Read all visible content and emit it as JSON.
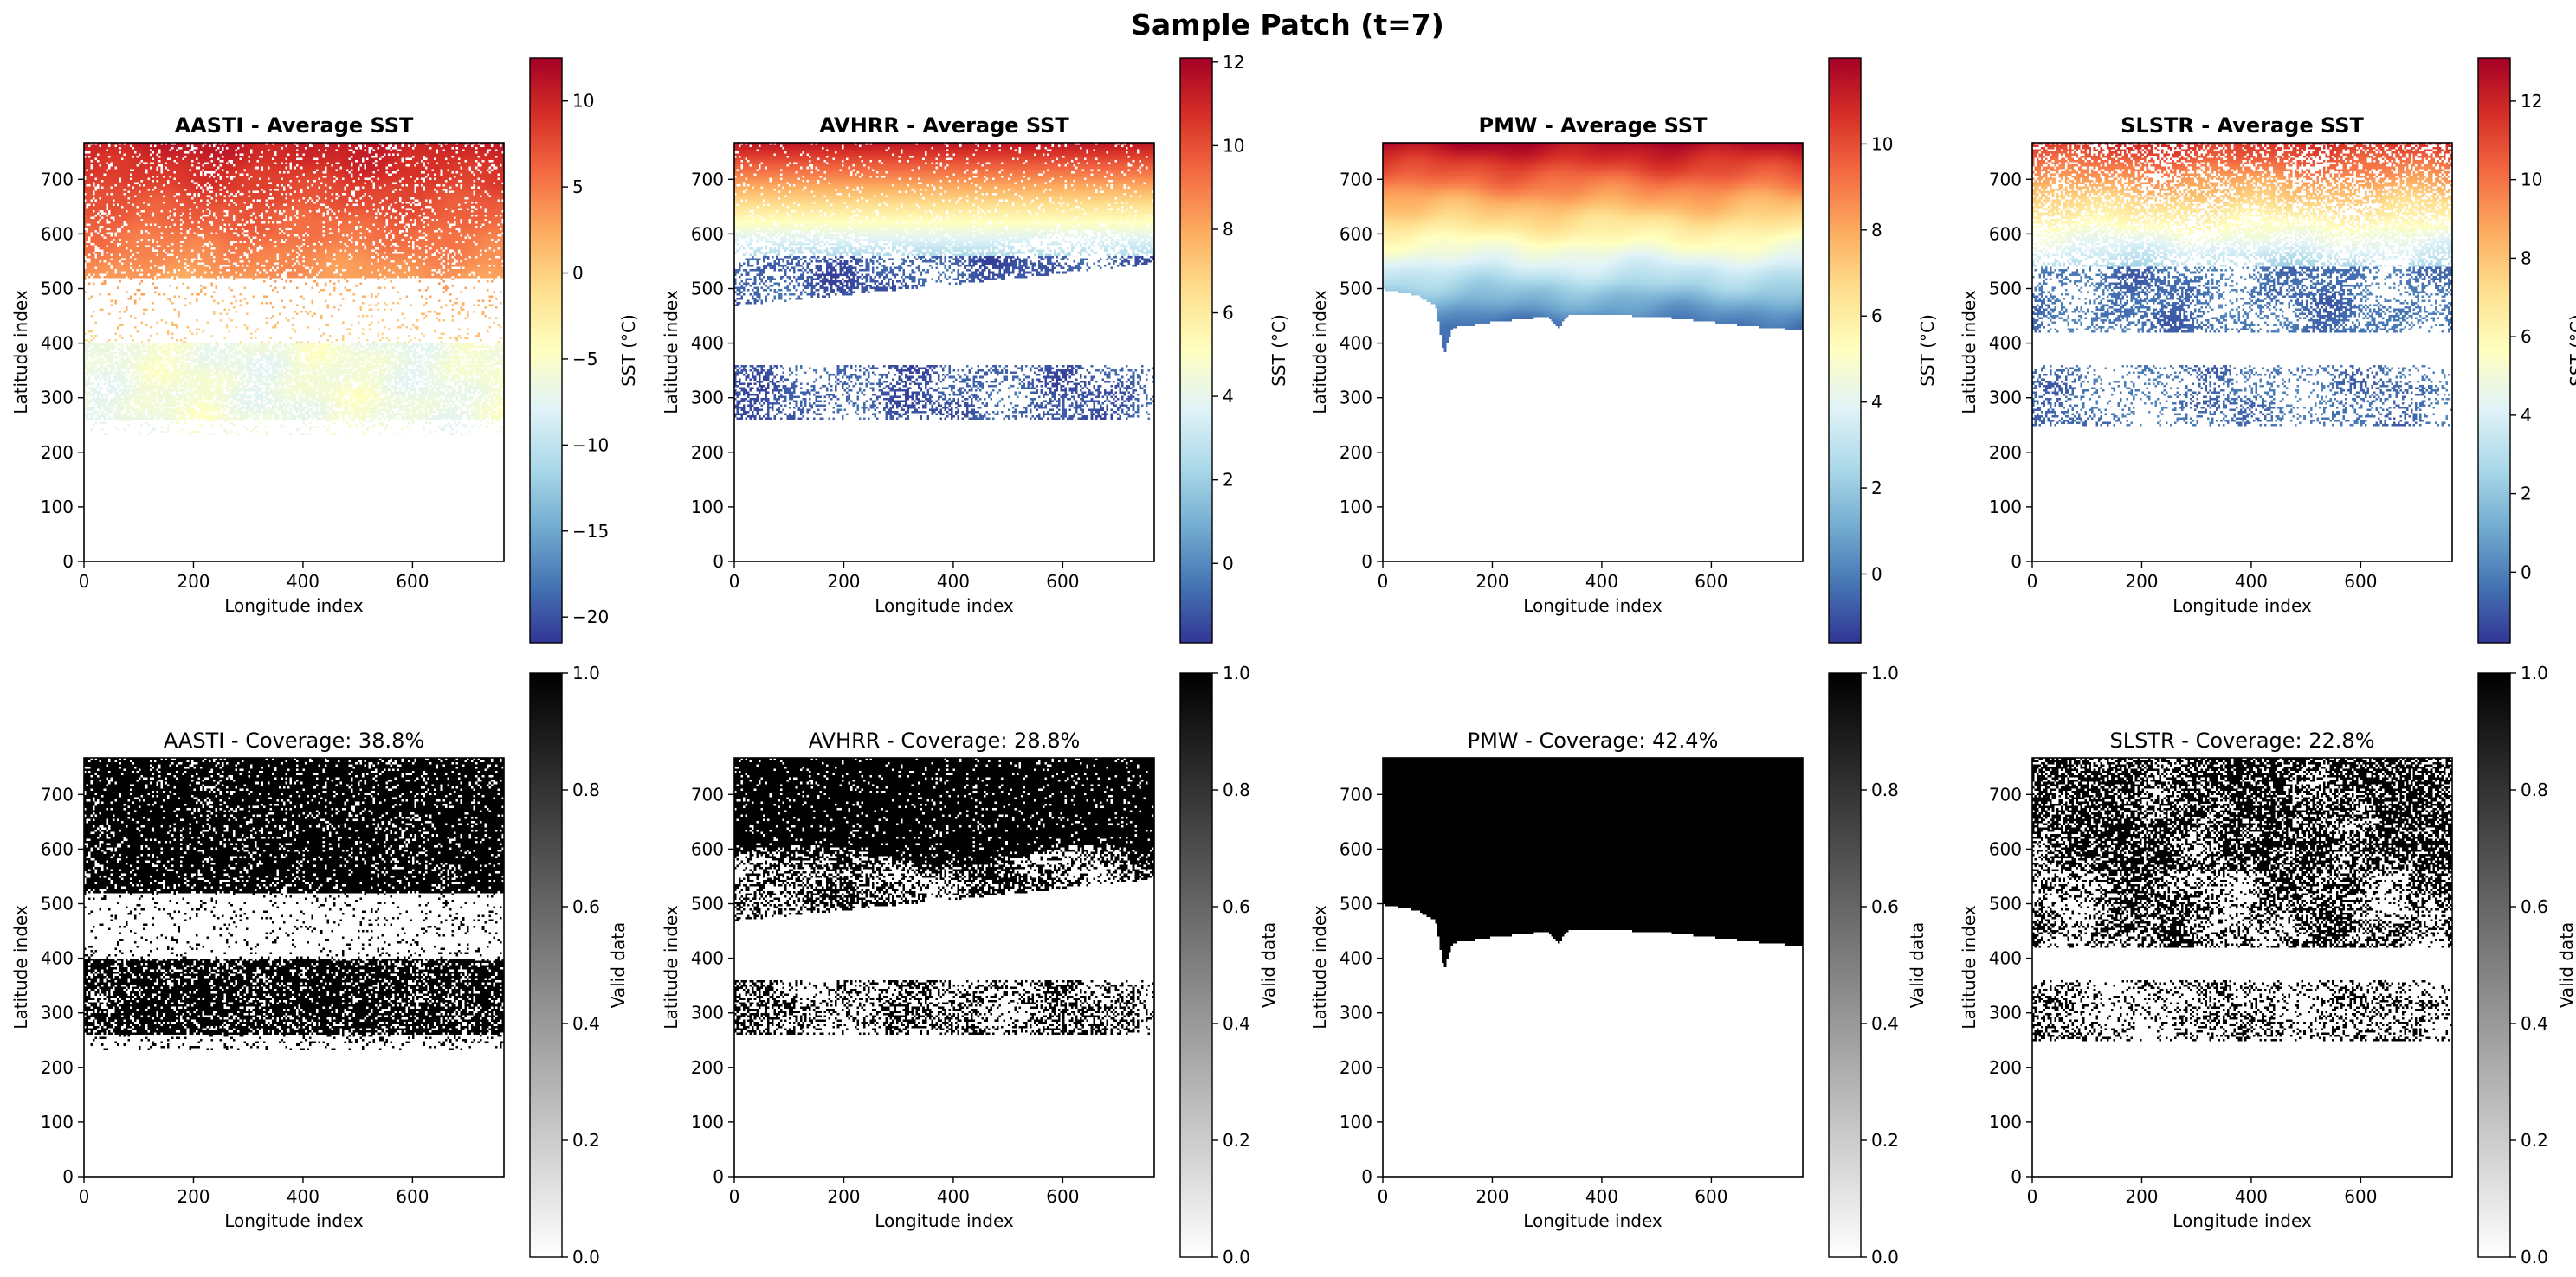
{
  "figure": {
    "suptitle": "Sample Patch (t=7)"
  },
  "colors": {
    "axis": "#000000",
    "background": "#ffffff",
    "rdylbu_r": [
      "#313695",
      "#4575b4",
      "#74add1",
      "#abd9e9",
      "#e0f3f8",
      "#ffffbf",
      "#fee090",
      "#fdae61",
      "#f46d43",
      "#d73027",
      "#a50026"
    ],
    "greys": [
      "#ffffff",
      "#000000"
    ]
  },
  "chart_data": [
    {
      "type": "heatmap",
      "panel": "top-1",
      "title": "AASTI - Average SST",
      "title_bold": true,
      "xlabel": "Longitude index",
      "ylabel": "Latitude index",
      "xticks": [
        0,
        200,
        400,
        600
      ],
      "yticks": [
        0,
        100,
        200,
        300,
        400,
        500,
        600,
        700
      ],
      "xlim": [
        0,
        767
      ],
      "ylim": [
        0,
        767
      ],
      "colorbar": {
        "label": "SST (°C)",
        "cmap": "RdYlBu_r",
        "range": [
          -21.5,
          12.5
        ],
        "ticks": [
          -20,
          -15,
          -10,
          -5,
          0,
          5,
          10
        ]
      }
    },
    {
      "type": "heatmap",
      "panel": "top-2",
      "title": "AVHRR - Average SST",
      "title_bold": true,
      "xlabel": "Longitude index",
      "ylabel": "Latitude index",
      "xticks": [
        0,
        200,
        400,
        600
      ],
      "yticks": [
        0,
        100,
        200,
        300,
        400,
        500,
        600,
        700
      ],
      "xlim": [
        0,
        767
      ],
      "ylim": [
        0,
        767
      ],
      "colorbar": {
        "label": "SST (°C)",
        "cmap": "RdYlBu_r",
        "range": [
          -1.9,
          12.1
        ],
        "ticks": [
          0,
          2,
          4,
          6,
          8,
          10,
          12
        ]
      }
    },
    {
      "type": "heatmap",
      "panel": "top-3",
      "title": "PMW - Average SST",
      "title_bold": true,
      "xlabel": "Longitude index",
      "ylabel": "Latitude index",
      "xticks": [
        0,
        200,
        400,
        600
      ],
      "yticks": [
        0,
        100,
        200,
        300,
        400,
        500,
        600,
        700
      ],
      "xlim": [
        0,
        767
      ],
      "ylim": [
        0,
        767
      ],
      "colorbar": {
        "label": "SST (°C)",
        "cmap": "RdYlBu_r",
        "range": [
          -1.6,
          12.0
        ],
        "ticks": [
          0,
          2,
          4,
          6,
          8,
          10
        ]
      }
    },
    {
      "type": "heatmap",
      "panel": "top-4",
      "title": "SLSTR - Average SST",
      "title_bold": true,
      "xlabel": "Longitude index",
      "ylabel": "Latitude index",
      "xticks": [
        0,
        200,
        400,
        600
      ],
      "yticks": [
        0,
        100,
        200,
        300,
        400,
        500,
        600,
        700
      ],
      "xlim": [
        0,
        767
      ],
      "ylim": [
        0,
        767
      ],
      "colorbar": {
        "label": "SST (°C)",
        "cmap": "RdYlBu_r",
        "range": [
          -1.8,
          13.1
        ],
        "ticks": [
          0,
          2,
          4,
          6,
          8,
          10,
          12
        ]
      }
    },
    {
      "type": "heatmap",
      "panel": "bottom-1",
      "title": "AASTI - Coverage: 38.8%",
      "title_bold": false,
      "xlabel": "Longitude index",
      "ylabel": "Latitude index",
      "xticks": [
        0,
        200,
        400,
        600
      ],
      "yticks": [
        0,
        100,
        200,
        300,
        400,
        500,
        600,
        700
      ],
      "xlim": [
        0,
        767
      ],
      "ylim": [
        0,
        767
      ],
      "coverage_percent": 38.8,
      "colorbar": {
        "label": "Valid data",
        "cmap": "Greys",
        "range": [
          0,
          1
        ],
        "ticks": [
          "0.0",
          "0.2",
          "0.4",
          "0.6",
          "0.8",
          "1.0"
        ]
      }
    },
    {
      "type": "heatmap",
      "panel": "bottom-2",
      "title": "AVHRR - Coverage: 28.8%",
      "title_bold": false,
      "xlabel": "Longitude index",
      "ylabel": "Latitude index",
      "xticks": [
        0,
        200,
        400,
        600
      ],
      "yticks": [
        0,
        100,
        200,
        300,
        400,
        500,
        600,
        700
      ],
      "xlim": [
        0,
        767
      ],
      "ylim": [
        0,
        767
      ],
      "coverage_percent": 28.8,
      "colorbar": {
        "label": "Valid data",
        "cmap": "Greys",
        "range": [
          0,
          1
        ],
        "ticks": [
          "0.0",
          "0.2",
          "0.4",
          "0.6",
          "0.8",
          "1.0"
        ]
      }
    },
    {
      "type": "heatmap",
      "panel": "bottom-3",
      "title": "PMW - Coverage: 42.4%",
      "title_bold": false,
      "xlabel": "Longitude index",
      "ylabel": "Latitude index",
      "xticks": [
        0,
        200,
        400,
        600
      ],
      "yticks": [
        0,
        100,
        200,
        300,
        400,
        500,
        600,
        700
      ],
      "xlim": [
        0,
        767
      ],
      "ylim": [
        0,
        767
      ],
      "coverage_percent": 42.4,
      "colorbar": {
        "label": "Valid data",
        "cmap": "Greys",
        "range": [
          0,
          1
        ],
        "ticks": [
          "0.0",
          "0.2",
          "0.4",
          "0.6",
          "0.8",
          "1.0"
        ]
      }
    },
    {
      "type": "heatmap",
      "panel": "bottom-4",
      "title": "SLSTR - Coverage: 22.8%",
      "title_bold": false,
      "xlabel": "Longitude index",
      "ylabel": "Latitude index",
      "xticks": [
        0,
        200,
        400,
        600
      ],
      "yticks": [
        0,
        100,
        200,
        300,
        400,
        500,
        600,
        700
      ],
      "xlim": [
        0,
        767
      ],
      "ylim": [
        0,
        767
      ],
      "coverage_percent": 22.8,
      "colorbar": {
        "label": "Valid data",
        "cmap": "Greys",
        "range": [
          0,
          1
        ],
        "ticks": [
          "0.0",
          "0.2",
          "0.4",
          "0.6",
          "0.8",
          "1.0"
        ]
      }
    }
  ]
}
